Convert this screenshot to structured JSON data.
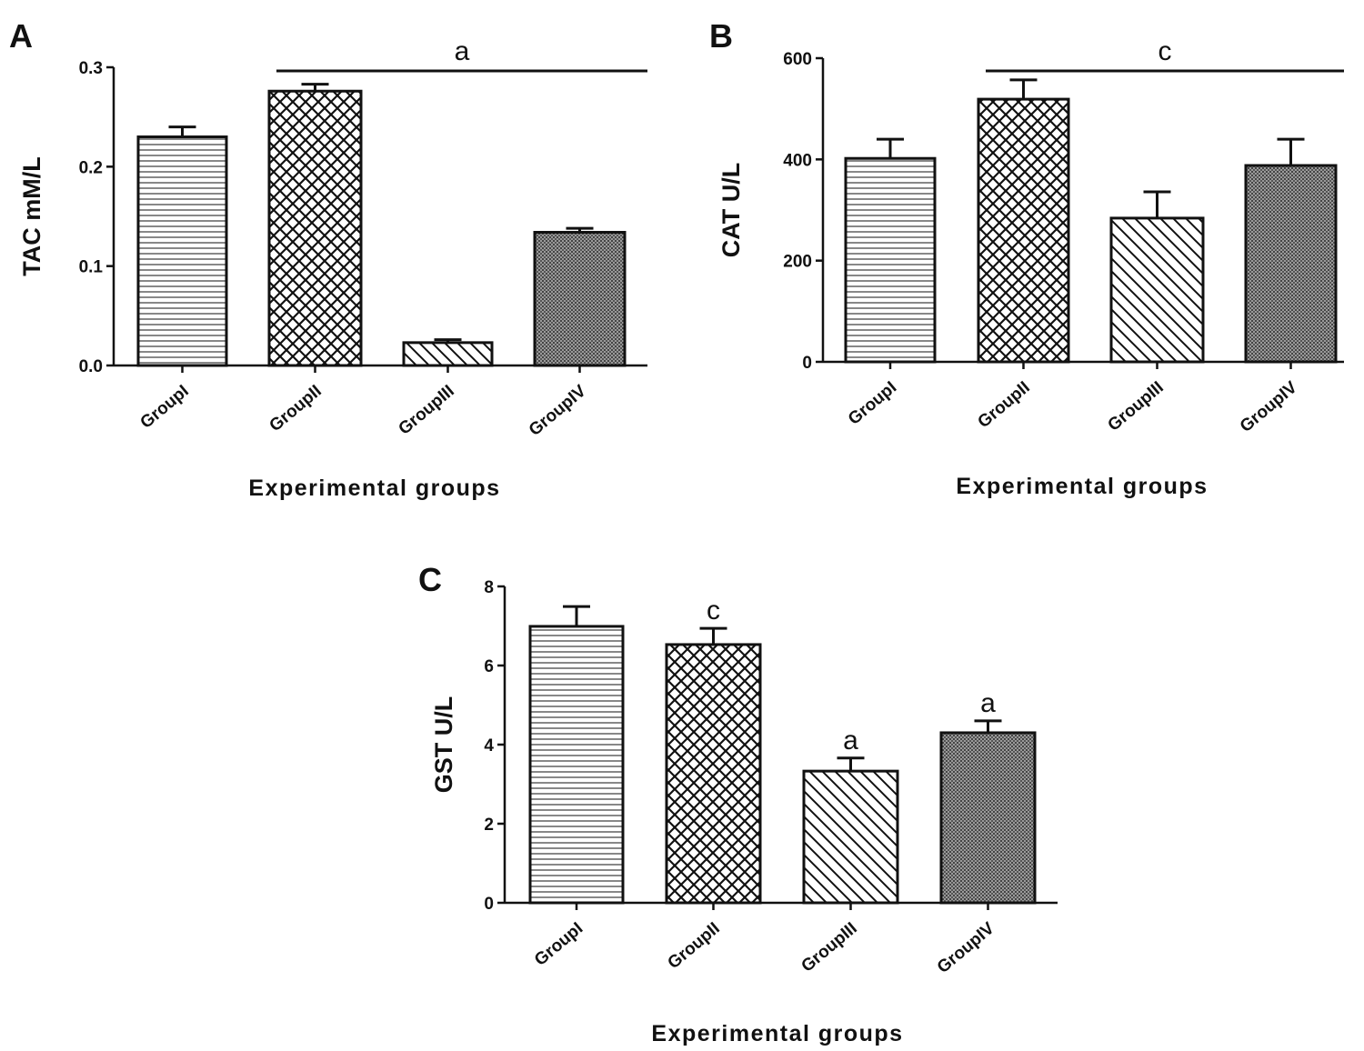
{
  "chart_data": [
    {
      "type": "bar",
      "panel_label": "A",
      "title": "",
      "xlabel": "Experimental groups",
      "ylabel": "TAC mM/L",
      "categories": [
        "GroupI",
        "GroupII",
        "GroupIII",
        "GroupIV"
      ],
      "values": [
        0.23,
        0.276,
        0.023,
        0.134
      ],
      "error_upper": [
        0.24,
        0.283,
        0.026,
        0.138
      ],
      "ylim": [
        0,
        0.3
      ],
      "yticks": [
        "0.0",
        "0.1",
        "0.2",
        "0.3"
      ],
      "ytick_values": [
        0,
        0.1,
        0.2,
        0.3
      ],
      "patterns": [
        "horizontal",
        "crosshatch",
        "diagonal",
        "dense"
      ],
      "annotations": [
        {
          "text": "a",
          "span": [
            "GroupII",
            "GroupIV"
          ],
          "type": "bracket"
        }
      ],
      "grid": false
    },
    {
      "type": "bar",
      "panel_label": "B",
      "title": "",
      "xlabel": "Experimental groups",
      "ylabel": "CAT U/L",
      "categories": [
        "GroupI",
        "GroupII",
        "GroupIII",
        "GroupIV"
      ],
      "values": [
        402,
        519,
        284,
        388
      ],
      "error_upper": [
        440,
        557,
        336,
        440
      ],
      "ylim": [
        0,
        600
      ],
      "yticks": [
        "0",
        "200",
        "400",
        "600"
      ],
      "ytick_values": [
        0,
        200,
        400,
        600
      ],
      "patterns": [
        "horizontal",
        "crosshatch",
        "diagonal",
        "dense"
      ],
      "annotations": [
        {
          "text": "c",
          "span": [
            "GroupII",
            "GroupIV"
          ],
          "type": "bracket"
        }
      ],
      "grid": false
    },
    {
      "type": "bar",
      "panel_label": "C",
      "title": "",
      "xlabel": "Experimental groups",
      "ylabel": "GST U/L",
      "categories": [
        "GroupI",
        "GroupII",
        "GroupIII",
        "GroupIV"
      ],
      "values": [
        6.99,
        6.53,
        3.33,
        4.3
      ],
      "error_upper": [
        7.49,
        6.94,
        3.66,
        4.6
      ],
      "ylim": [
        0,
        8
      ],
      "yticks": [
        "0",
        "2",
        "4",
        "6",
        "8"
      ],
      "ytick_values": [
        0,
        2,
        4,
        6,
        8
      ],
      "patterns": [
        "horizontal",
        "crosshatch",
        "diagonal",
        "dense"
      ],
      "annotations": [
        {
          "text": "c",
          "span": [
            "GroupII"
          ],
          "type": "label"
        },
        {
          "text": "a",
          "span": [
            "GroupIII"
          ],
          "type": "label"
        },
        {
          "text": "a",
          "span": [
            "GroupIV"
          ],
          "type": "label"
        }
      ],
      "grid": false
    }
  ]
}
